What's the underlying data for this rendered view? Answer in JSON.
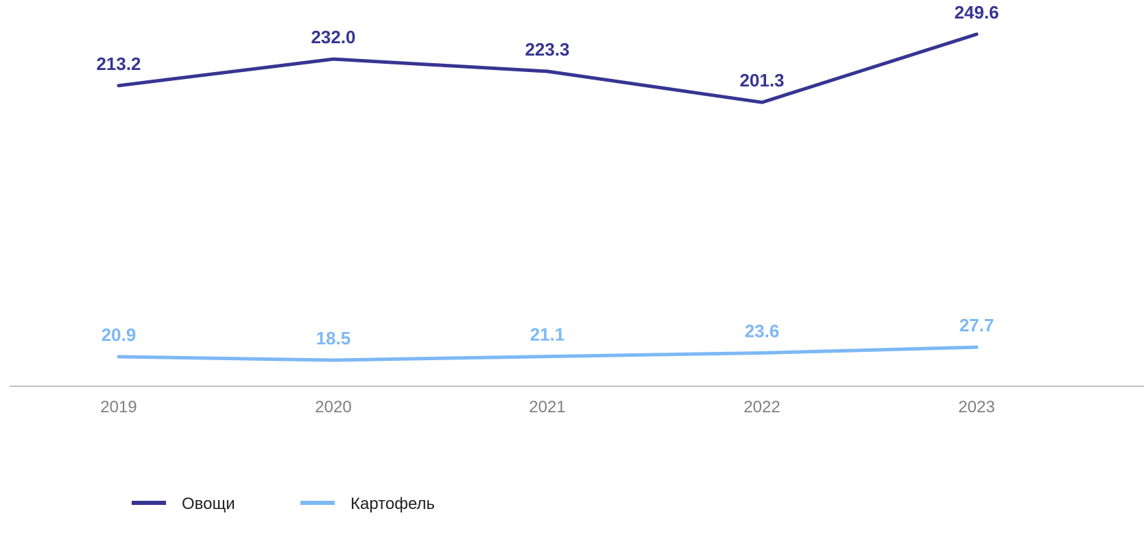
{
  "chart_data": {
    "type": "line",
    "x": [
      "2019",
      "2020",
      "2021",
      "2022",
      "2023"
    ],
    "series": [
      {
        "name": "Овощи",
        "color": "#373592",
        "values": [
          213.2,
          232.0,
          223.3,
          201.3,
          249.6
        ],
        "labels": [
          "213.2",
          "232.0",
          "223.3",
          "201.3",
          "249.6"
        ]
      },
      {
        "name": "Картофель",
        "color": "#7db8f5",
        "values": [
          20.9,
          18.5,
          21.1,
          23.6,
          27.7
        ],
        "labels": [
          "20.9",
          "18.5",
          "21.1",
          "23.6",
          "27.7"
        ]
      }
    ],
    "ylim": [
      0,
      270
    ],
    "grid": false,
    "y_axis_visible": false,
    "axis_color": "#bfbfbf",
    "legend_position": "bottom-left"
  }
}
